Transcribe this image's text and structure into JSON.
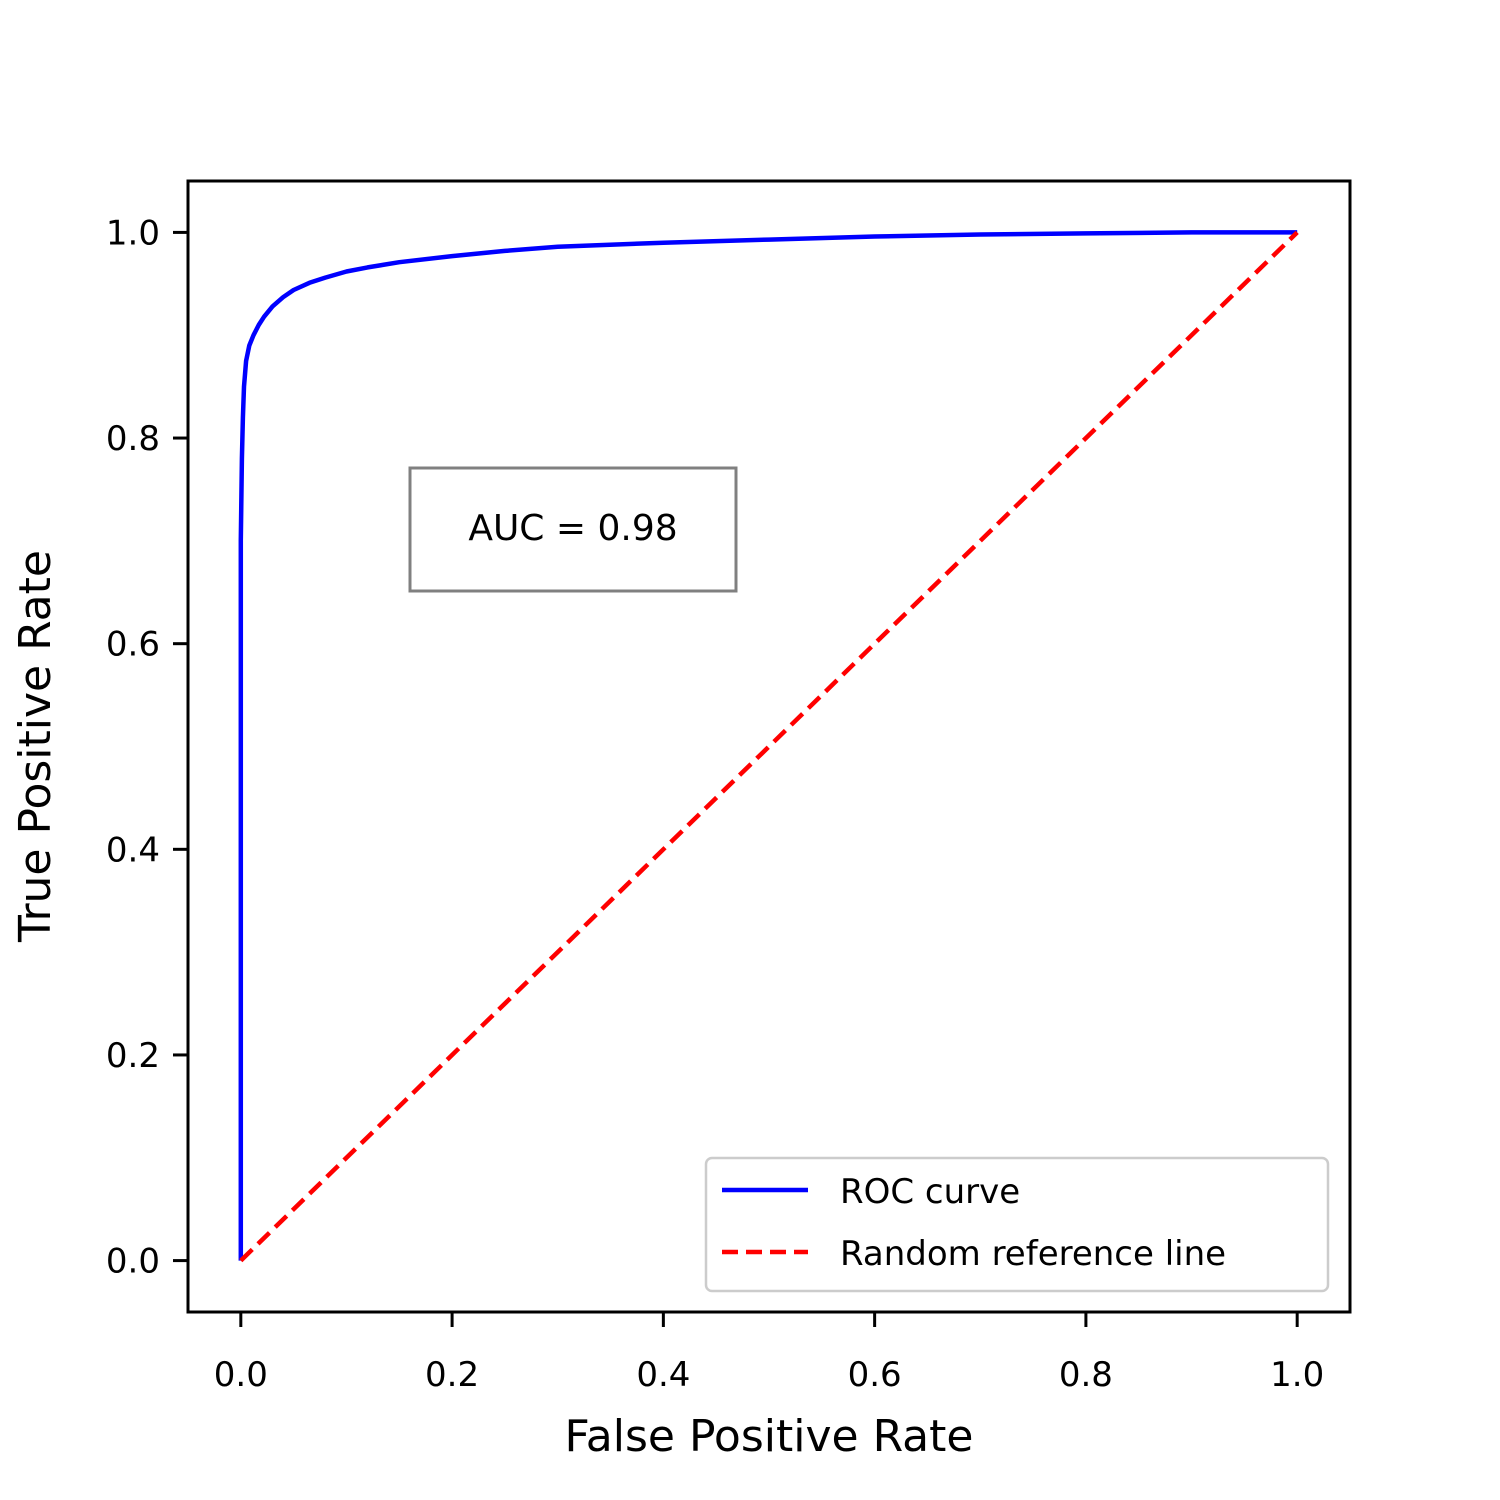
{
  "chart_data": {
    "type": "line",
    "title": "",
    "xlabel": "False Positive Rate",
    "ylabel": "True Positive Rate",
    "xlim": [
      -0.05,
      1.05
    ],
    "ylim": [
      -0.05,
      1.05
    ],
    "xticks": [
      0.0,
      0.2,
      0.4,
      0.6,
      0.8,
      1.0
    ],
    "yticks": [
      0.0,
      0.2,
      0.4,
      0.6,
      0.8,
      1.0
    ],
    "xtick_labels": [
      "0.0",
      "0.2",
      "0.4",
      "0.6",
      "0.8",
      "1.0"
    ],
    "ytick_labels": [
      "0.0",
      "0.2",
      "0.4",
      "0.6",
      "0.8",
      "1.0"
    ],
    "grid": false,
    "legend": {
      "placement": "lower-right",
      "entries": [
        "ROC curve",
        "Random reference line"
      ]
    },
    "annotation": {
      "text": "AUC = 0.98",
      "boxed": true,
      "x": 0.31,
      "y": 0.71
    },
    "series": [
      {
        "name": "ROC curve",
        "color": "#0000ff",
        "style": "solid",
        "x": [
          0.0,
          0.0,
          0.001,
          0.002,
          0.003,
          0.005,
          0.008,
          0.012,
          0.017,
          0.022,
          0.03,
          0.04,
          0.05,
          0.065,
          0.08,
          0.1,
          0.12,
          0.15,
          0.2,
          0.25,
          0.3,
          0.4,
          0.5,
          0.6,
          0.7,
          0.8,
          0.9,
          1.0
        ],
        "y": [
          0.0,
          0.7,
          0.78,
          0.82,
          0.85,
          0.875,
          0.89,
          0.9,
          0.91,
          0.918,
          0.928,
          0.937,
          0.944,
          0.951,
          0.956,
          0.962,
          0.966,
          0.971,
          0.977,
          0.982,
          0.986,
          0.99,
          0.993,
          0.996,
          0.998,
          0.999,
          1.0,
          1.0
        ]
      },
      {
        "name": "Random reference line",
        "color": "#ff0000",
        "style": "dashed",
        "x": [
          0.0,
          1.0
        ],
        "y": [
          0.0,
          1.0
        ]
      }
    ]
  }
}
